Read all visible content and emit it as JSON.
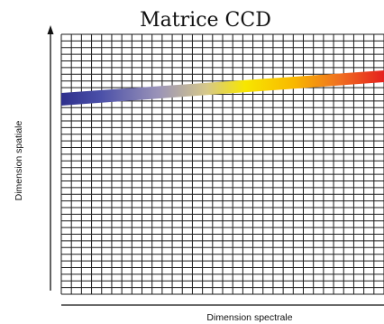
{
  "title": "Matrice CCD",
  "x_axis_label": "Dimension spectrale",
  "y_axis_label": "Dimension spatiale",
  "grid": {
    "columns": 32,
    "rows": 39,
    "line_color": "#1a1a1a",
    "background": "#ffffff"
  },
  "spectrum": {
    "gradient_stops": [
      {
        "offset": "0%",
        "color": "#2e2f8c"
      },
      {
        "offset": "12%",
        "color": "#4a4fa8"
      },
      {
        "offset": "30%",
        "color": "#9a93b8"
      },
      {
        "offset": "45%",
        "color": "#d6c88a"
      },
      {
        "offset": "57%",
        "color": "#f7e600"
      },
      {
        "offset": "72%",
        "color": "#f8b800"
      },
      {
        "offset": "86%",
        "color": "#f07020"
      },
      {
        "offset": "100%",
        "color": "#e5201e"
      }
    ]
  }
}
